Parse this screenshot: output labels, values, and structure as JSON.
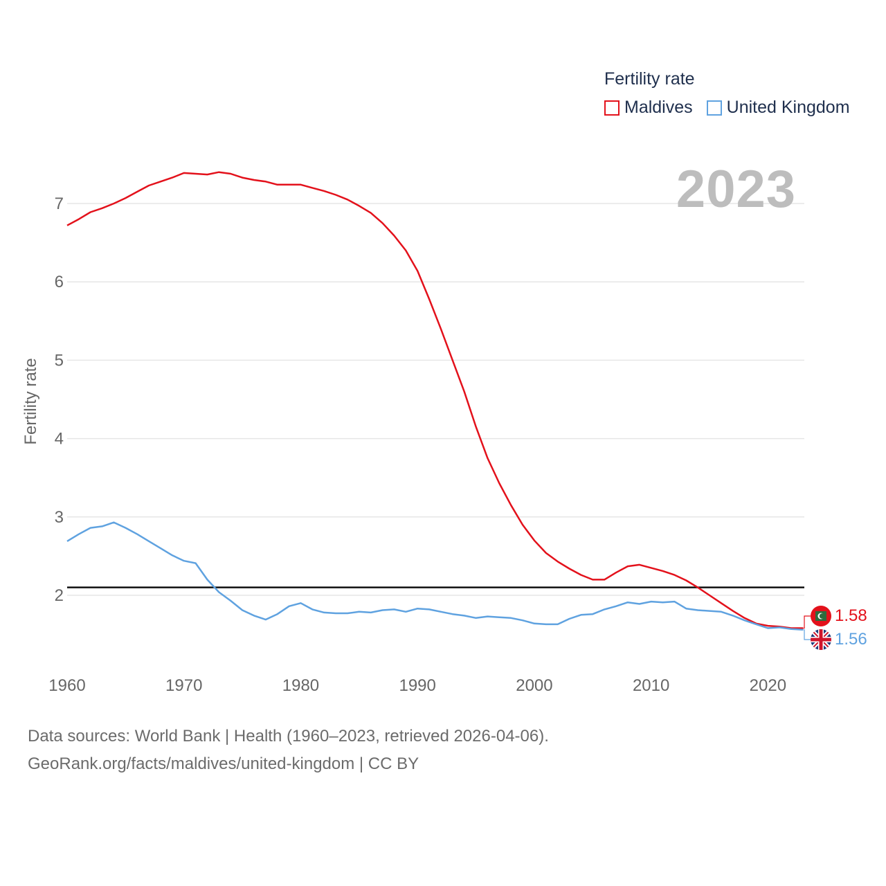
{
  "legend": {
    "title": "Fertility rate",
    "items": [
      {
        "label": "Maldives",
        "color": "#e3111b"
      },
      {
        "label": "United Kingdom",
        "color": "#5fa2e0"
      }
    ]
  },
  "year_label": "2023",
  "end_labels": {
    "maldives": "1.58",
    "uk": "1.56"
  },
  "footer": {
    "line1": "Data sources: World Bank | Health (1960–2023, retrieved 2026-04-06).",
    "line2": "GeoRank.org/facts/maldives/united-kingdom | CC BY"
  },
  "colors": {
    "maldives": "#e3111b",
    "uk": "#5fa2e0",
    "replacement_line": "#111111",
    "grid": "#e6e6e6",
    "tick_text": "#666666"
  },
  "chart_data": {
    "type": "line",
    "title": "Fertility rate",
    "xlabel": "",
    "ylabel": "Fertility rate",
    "xlim": [
      1960,
      2023
    ],
    "ylim": [
      1.15,
      7.6
    ],
    "x_ticks": [
      1960,
      1970,
      1980,
      1990,
      2000,
      2010,
      2020
    ],
    "y_ticks": [
      2,
      3,
      4,
      5,
      6,
      7
    ],
    "reference_line": 2.1,
    "x": [
      1960,
      1961,
      1962,
      1963,
      1964,
      1965,
      1966,
      1967,
      1968,
      1969,
      1970,
      1971,
      1972,
      1973,
      1974,
      1975,
      1976,
      1977,
      1978,
      1979,
      1980,
      1981,
      1982,
      1983,
      1984,
      1985,
      1986,
      1987,
      1988,
      1989,
      1990,
      1991,
      1992,
      1993,
      1994,
      1995,
      1996,
      1997,
      1998,
      1999,
      2000,
      2001,
      2002,
      2003,
      2004,
      2005,
      2006,
      2007,
      2008,
      2009,
      2010,
      2011,
      2012,
      2013,
      2014,
      2015,
      2016,
      2017,
      2018,
      2019,
      2020,
      2021,
      2022,
      2023
    ],
    "series": [
      {
        "name": "Maldives",
        "values": [
          6.72,
          6.8,
          6.89,
          6.94,
          7.0,
          7.07,
          7.15,
          7.23,
          7.28,
          7.33,
          7.39,
          7.38,
          7.37,
          7.4,
          7.38,
          7.33,
          7.3,
          7.28,
          7.24,
          7.24,
          7.24,
          7.2,
          7.16,
          7.11,
          7.05,
          6.97,
          6.88,
          6.75,
          6.59,
          6.4,
          6.14,
          5.78,
          5.4,
          5.0,
          4.6,
          4.15,
          3.75,
          3.43,
          3.15,
          2.9,
          2.7,
          2.54,
          2.43,
          2.34,
          2.26,
          2.2,
          2.2,
          2.29,
          2.37,
          2.39,
          2.35,
          2.31,
          2.26,
          2.19,
          2.1,
          2.0,
          1.9,
          1.8,
          1.71,
          1.64,
          1.61,
          1.6,
          1.58,
          1.58
        ]
      },
      {
        "name": "United Kingdom",
        "values": [
          2.69,
          2.78,
          2.86,
          2.88,
          2.93,
          2.86,
          2.78,
          2.69,
          2.6,
          2.51,
          2.44,
          2.41,
          2.2,
          2.04,
          1.93,
          1.81,
          1.74,
          1.69,
          1.76,
          1.86,
          1.9,
          1.82,
          1.78,
          1.77,
          1.77,
          1.79,
          1.78,
          1.81,
          1.82,
          1.79,
          1.83,
          1.82,
          1.79,
          1.76,
          1.74,
          1.71,
          1.73,
          1.72,
          1.71,
          1.68,
          1.64,
          1.63,
          1.63,
          1.7,
          1.75,
          1.76,
          1.82,
          1.86,
          1.91,
          1.89,
          1.92,
          1.91,
          1.92,
          1.83,
          1.81,
          1.8,
          1.79,
          1.74,
          1.68,
          1.63,
          1.58,
          1.59,
          1.57,
          1.56
        ]
      }
    ]
  }
}
